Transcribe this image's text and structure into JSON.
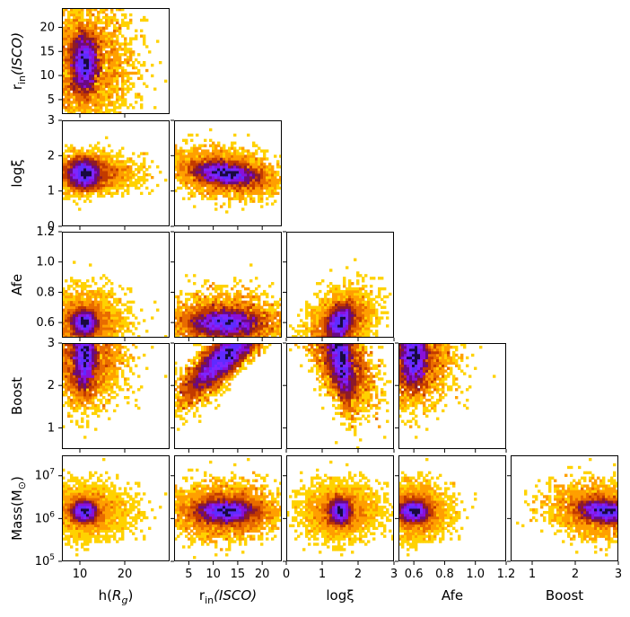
{
  "chart_data": {
    "type": "heatmap",
    "title": "",
    "variables": [
      {
        "key": "h",
        "label_text": "h(",
        "label_sub": "g",
        "label_mid": "R",
        "label_close": ")",
        "range": [
          6,
          30
        ],
        "ticks": [
          10,
          20
        ],
        "tick_labels": [
          "10",
          "20"
        ],
        "scale": "linear"
      },
      {
        "key": "rin",
        "label_text": "r",
        "label_sub": "in",
        "label_close": "(ISCO)",
        "range": [
          2,
          24
        ],
        "ticks": [
          5,
          10,
          15,
          20
        ],
        "tick_labels": [
          "5",
          "10",
          "15",
          "20"
        ],
        "scale": "linear"
      },
      {
        "key": "logxi",
        "label_text": "logξ",
        "range": [
          0,
          3
        ],
        "ticks": [
          0,
          1,
          2,
          3
        ],
        "tick_labels": [
          "0",
          "1",
          "2",
          "3"
        ],
        "scale": "linear"
      },
      {
        "key": "afe",
        "label_text": "Afe",
        "range": [
          0.5,
          1.2
        ],
        "ticks": [
          0.6,
          0.8,
          1.0,
          1.2
        ],
        "tick_labels": [
          "0.6",
          "0.8",
          "1.0",
          "1.2"
        ],
        "scale": "linear"
      },
      {
        "key": "boost",
        "label_text": "Boost",
        "range": [
          0.5,
          3
        ],
        "ticks": [
          1,
          2,
          3
        ],
        "tick_labels": [
          "1",
          "2",
          "3"
        ],
        "scale": "linear"
      },
      {
        "key": "mass",
        "label_text": "Mass(M",
        "label_sub": "⊙",
        "label_close": ")",
        "range": [
          100000,
          30000000
        ],
        "ticks": [
          100000,
          1000000,
          10000000
        ],
        "tick_labels": [
          "10",
          "10",
          "10"
        ],
        "tick_exps": [
          "5",
          "6",
          "7"
        ],
        "scale": "log"
      }
    ],
    "row_tick_overrides": {
      "rin": {
        "ticks": [
          5,
          10,
          15,
          20
        ],
        "tick_labels": [
          "5",
          "10",
          "15",
          "20"
        ]
      },
      "afe": {
        "ticks": [
          0.6,
          0.8,
          1.0,
          1.2
        ],
        "tick_labels": [
          "0.6",
          "0.8",
          "1.0",
          "1.2"
        ]
      },
      "boost": {
        "ticks": [
          1,
          2,
          3
        ],
        "tick_labels": [
          "1",
          "2",
          "3"
        ]
      }
    },
    "peaks": {
      "h": 11,
      "rin": 12.5,
      "logxi": 1.5,
      "afe": 0.6,
      "boost": 2.7,
      "mass": 1500000
    },
    "colormap": [
      "#ffff00",
      "#ffd200",
      "#ff9f00",
      "#e86b00",
      "#c23a00",
      "#8c1a2a",
      "#6a0a80",
      "#8a10d8",
      "#7e26ff",
      "#5f2bff",
      "#1a0a40"
    ],
    "grid": false,
    "legend": "none"
  }
}
